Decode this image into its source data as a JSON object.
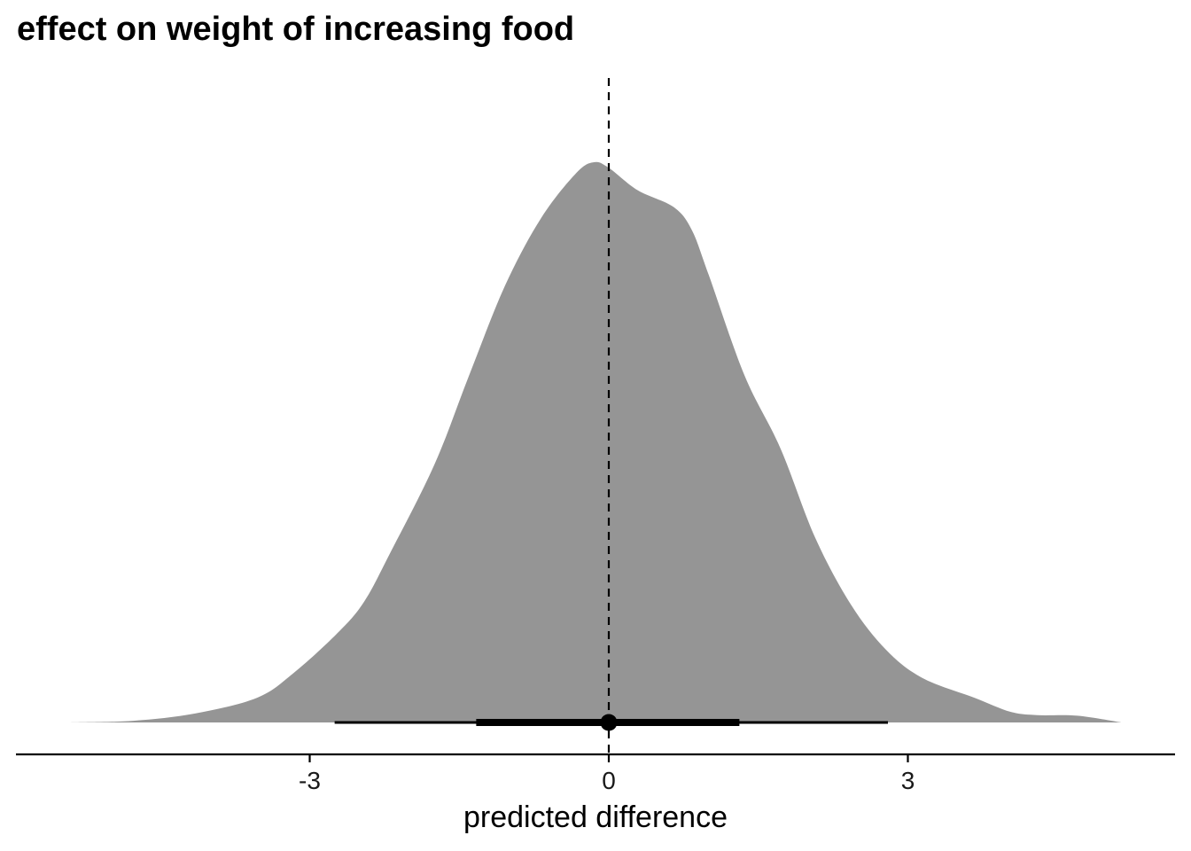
{
  "chart_data": {
    "type": "area",
    "subtype": "density with point-interval (halfeye)",
    "title": "effect on weight of increasing food",
    "xlabel": "predicted difference",
    "ylabel": "",
    "xlim": [
      -6.0,
      5.7
    ],
    "x_ticks": [
      -3,
      0,
      3
    ],
    "x_tick_labels": [
      "-3",
      "0",
      "3"
    ],
    "y_axis_visible": false,
    "grid": false,
    "legend": "none",
    "fill_color": "#959595",
    "reference_line": {
      "x": 0,
      "style": "dashed",
      "color": "#000000"
    },
    "density": {
      "x": [
        -5.4,
        -4.77,
        -4.15,
        -3.53,
        -3.17,
        -2.73,
        -2.46,
        -2.2,
        -1.75,
        -1.4,
        -1.04,
        -0.68,
        -0.33,
        -0.15,
        0.0,
        0.29,
        0.65,
        0.83,
        1.0,
        1.36,
        1.72,
        2.07,
        2.43,
        2.78,
        3.14,
        3.67,
        4.03,
        4.3,
        4.7,
        5.14
      ],
      "y_rel": [
        0.0,
        0.003,
        0.016,
        0.044,
        0.087,
        0.158,
        0.214,
        0.3,
        0.46,
        0.62,
        0.78,
        0.9,
        0.98,
        1.0,
        0.99,
        0.95,
        0.92,
        0.88,
        0.8,
        0.62,
        0.49,
        0.33,
        0.21,
        0.13,
        0.08,
        0.044,
        0.019,
        0.013,
        0.012,
        0.0
      ]
    },
    "point_interval": {
      "point": 0.0,
      "inner_interval": [
        -1.33,
        1.31
      ],
      "outer_interval": [
        -2.75,
        2.8
      ],
      "color": "#000000"
    }
  }
}
